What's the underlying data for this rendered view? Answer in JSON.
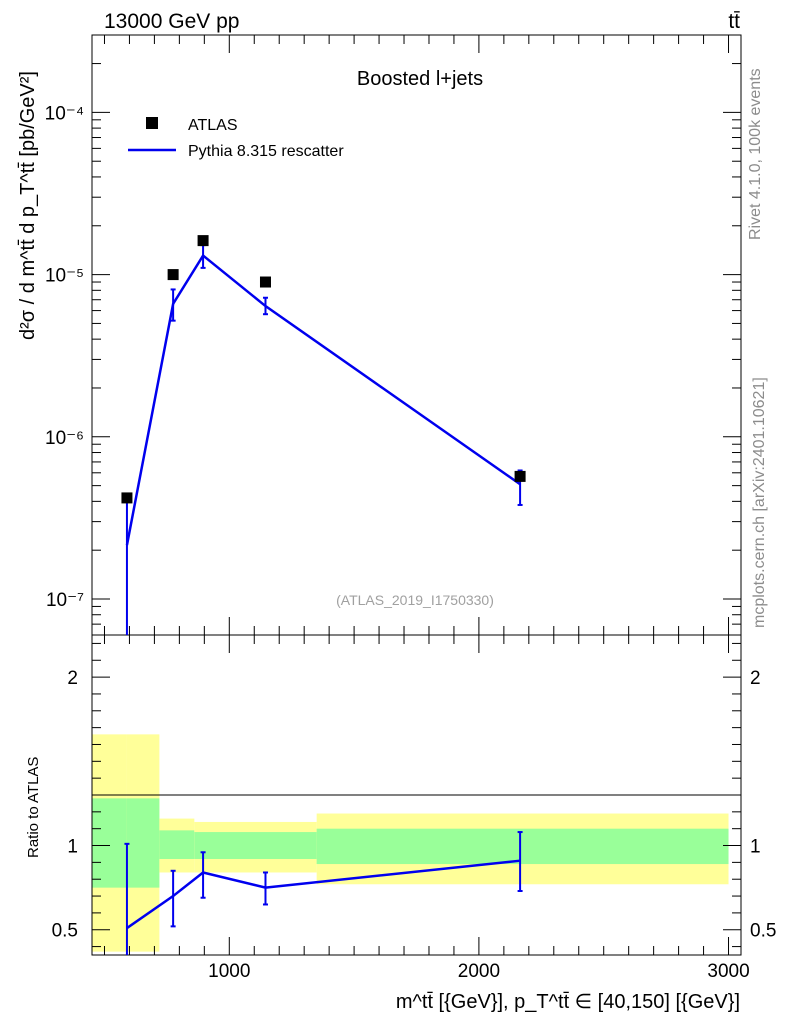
{
  "header": {
    "energy": "13000 GeV pp",
    "process": "tt̄"
  },
  "side": {
    "rivet": "Rivet 4.1.0,  100k events",
    "source": "mcplots.cern.ch [arXiv:2401.10621]"
  },
  "chart_data": {
    "type": "scatter",
    "title": "Boosted l+jets",
    "watermark": "(ATLAS_2019_I1750330)",
    "ylabel": "d²σ / d m^tt̄ d p_T^tt̄ [pb/GeV²]",
    "xlabel": "m^tt̄ [{GeV}], p_T^tt̄ ∈ [40,150] [{GeV}]",
    "ratio_ylabel": "Ratio to ATLAS",
    "xlim": [
      450,
      3050
    ],
    "ylim": [
      6e-08,
      0.0003
    ],
    "ratio_ylim": [
      0.35,
      2.25
    ],
    "x_ticks": [
      1000,
      2000,
      3000
    ],
    "x_tick_labels": [
      "1000",
      "2000",
      "3000"
    ],
    "y_tick_labels": [
      "10⁻⁷",
      "10⁻⁶",
      "10⁻⁵",
      "10⁻⁴"
    ],
    "ratio_ticks": [
      0.5,
      1,
      2
    ],
    "ratio_tick_labels": [
      "0.5",
      "1",
      "2"
    ],
    "legend": [
      {
        "label": "ATLAS",
        "marker": "square",
        "color": "#000000"
      },
      {
        "label": "Pythia 8.315 rescatter",
        "marker": "line",
        "color": "#0000ee"
      }
    ],
    "data": [
      {
        "x": 590,
        "xlo": 450,
        "xhi": 720,
        "y": 4.2e-07
      },
      {
        "x": 775,
        "xlo": 720,
        "xhi": 860,
        "y": 1e-05
      },
      {
        "x": 895,
        "xlo": 860,
        "xhi": 1350,
        "y": 1.62e-05
      },
      {
        "x": 1145,
        "xlo": 860,
        "xhi": 1350,
        "y": 9e-06
      },
      {
        "x": 2165,
        "xlo": 1350,
        "xhi": 3000,
        "y": 5.7e-07
      }
    ],
    "mc": [
      {
        "x": 590,
        "y": 2.15e-07,
        "ylo": 1e-09,
        "yhi": 4.2e-07
      },
      {
        "x": 775,
        "y": 6.6e-06,
        "ylo": 5.2e-06,
        "yhi": 8.1e-06
      },
      {
        "x": 895,
        "y": 1.31e-05,
        "ylo": 1.1e-05,
        "yhi": 1.52e-05
      },
      {
        "x": 1145,
        "y": 6.4e-06,
        "ylo": 5.7e-06,
        "yhi": 7.2e-06
      },
      {
        "x": 2165,
        "y": 5.1e-07,
        "ylo": 3.8e-07,
        "yhi": 6.2e-07
      }
    ],
    "ratio": [
      {
        "x": 590,
        "y": 0.51,
        "ylo": 0.35,
        "yhi": 1.01
      },
      {
        "x": 775,
        "y": 0.7,
        "ylo": 0.52,
        "yhi": 0.85
      },
      {
        "x": 895,
        "y": 0.84,
        "ylo": 0.69,
        "yhi": 0.96
      },
      {
        "x": 1145,
        "y": 0.75,
        "ylo": 0.65,
        "yhi": 0.84
      },
      {
        "x": 2165,
        "y": 0.91,
        "ylo": 0.73,
        "yhi": 1.08
      }
    ],
    "bands": [
      {
        "xlo": 450,
        "xhi": 590,
        "y1lo": 0.75,
        "y1hi": 1.28,
        "y2lo": 0.37,
        "y2hi": 1.66
      },
      {
        "xlo": 590,
        "xhi": 720,
        "y1lo": 0.75,
        "y1hi": 1.28,
        "y2lo": 0.37,
        "y2hi": 1.66
      },
      {
        "xlo": 720,
        "xhi": 860,
        "y1lo": 0.92,
        "y1hi": 1.09,
        "y2lo": 0.84,
        "y2hi": 1.16
      },
      {
        "xlo": 860,
        "xhi": 1350,
        "y1lo": 0.92,
        "y1hi": 1.08,
        "y2lo": 0.84,
        "y2hi": 1.14
      },
      {
        "xlo": 1350,
        "xhi": 3000,
        "y1lo": 0.89,
        "y1hi": 1.1,
        "y2lo": 0.77,
        "y2hi": 1.19
      }
    ]
  }
}
